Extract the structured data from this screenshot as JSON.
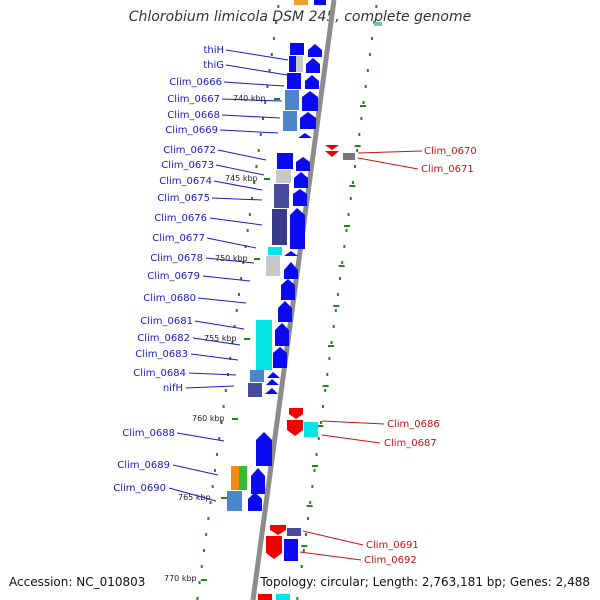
{
  "title": "Chlorobium limicola DSM 245, complete genome",
  "accession": "Accession: NC_010803",
  "summary": "Topology: circular; Length: 2,763,181 bp; Genes: 2,488",
  "colors": {
    "forward_gene": "#0a0af0",
    "reverse_gene": "#ee0000",
    "backbone": "#8c8c8c",
    "tick": "#1a8a1a",
    "left_label": "#1a1acc",
    "right_label": "#cc1111"
  },
  "scale_labels": [
    "740 kbp",
    "745 kbp",
    "750 kbp",
    "755 kbp",
    "760 kbp",
    "765 kbp",
    "770 kbp"
  ],
  "left_genes": [
    "thiH",
    "thiG",
    "Clim_0666",
    "Clim_0667",
    "Clim_0668",
    "Clim_0669",
    "Clim_0672",
    "Clim_0673",
    "Clim_0674",
    "Clim_0675",
    "Clim_0676",
    "Clim_0677",
    "Clim_0678",
    "Clim_0679",
    "Clim_0680",
    "Clim_0681",
    "Clim_0682",
    "Clim_0683",
    "Clim_0684",
    "nifH",
    "Clim_0688",
    "Clim_0689",
    "Clim_0690"
  ],
  "right_genes": [
    "Clim_0670",
    "Clim_0671",
    "Clim_0686",
    "Clim_0687",
    "Clim_0691",
    "Clim_0692"
  ]
}
